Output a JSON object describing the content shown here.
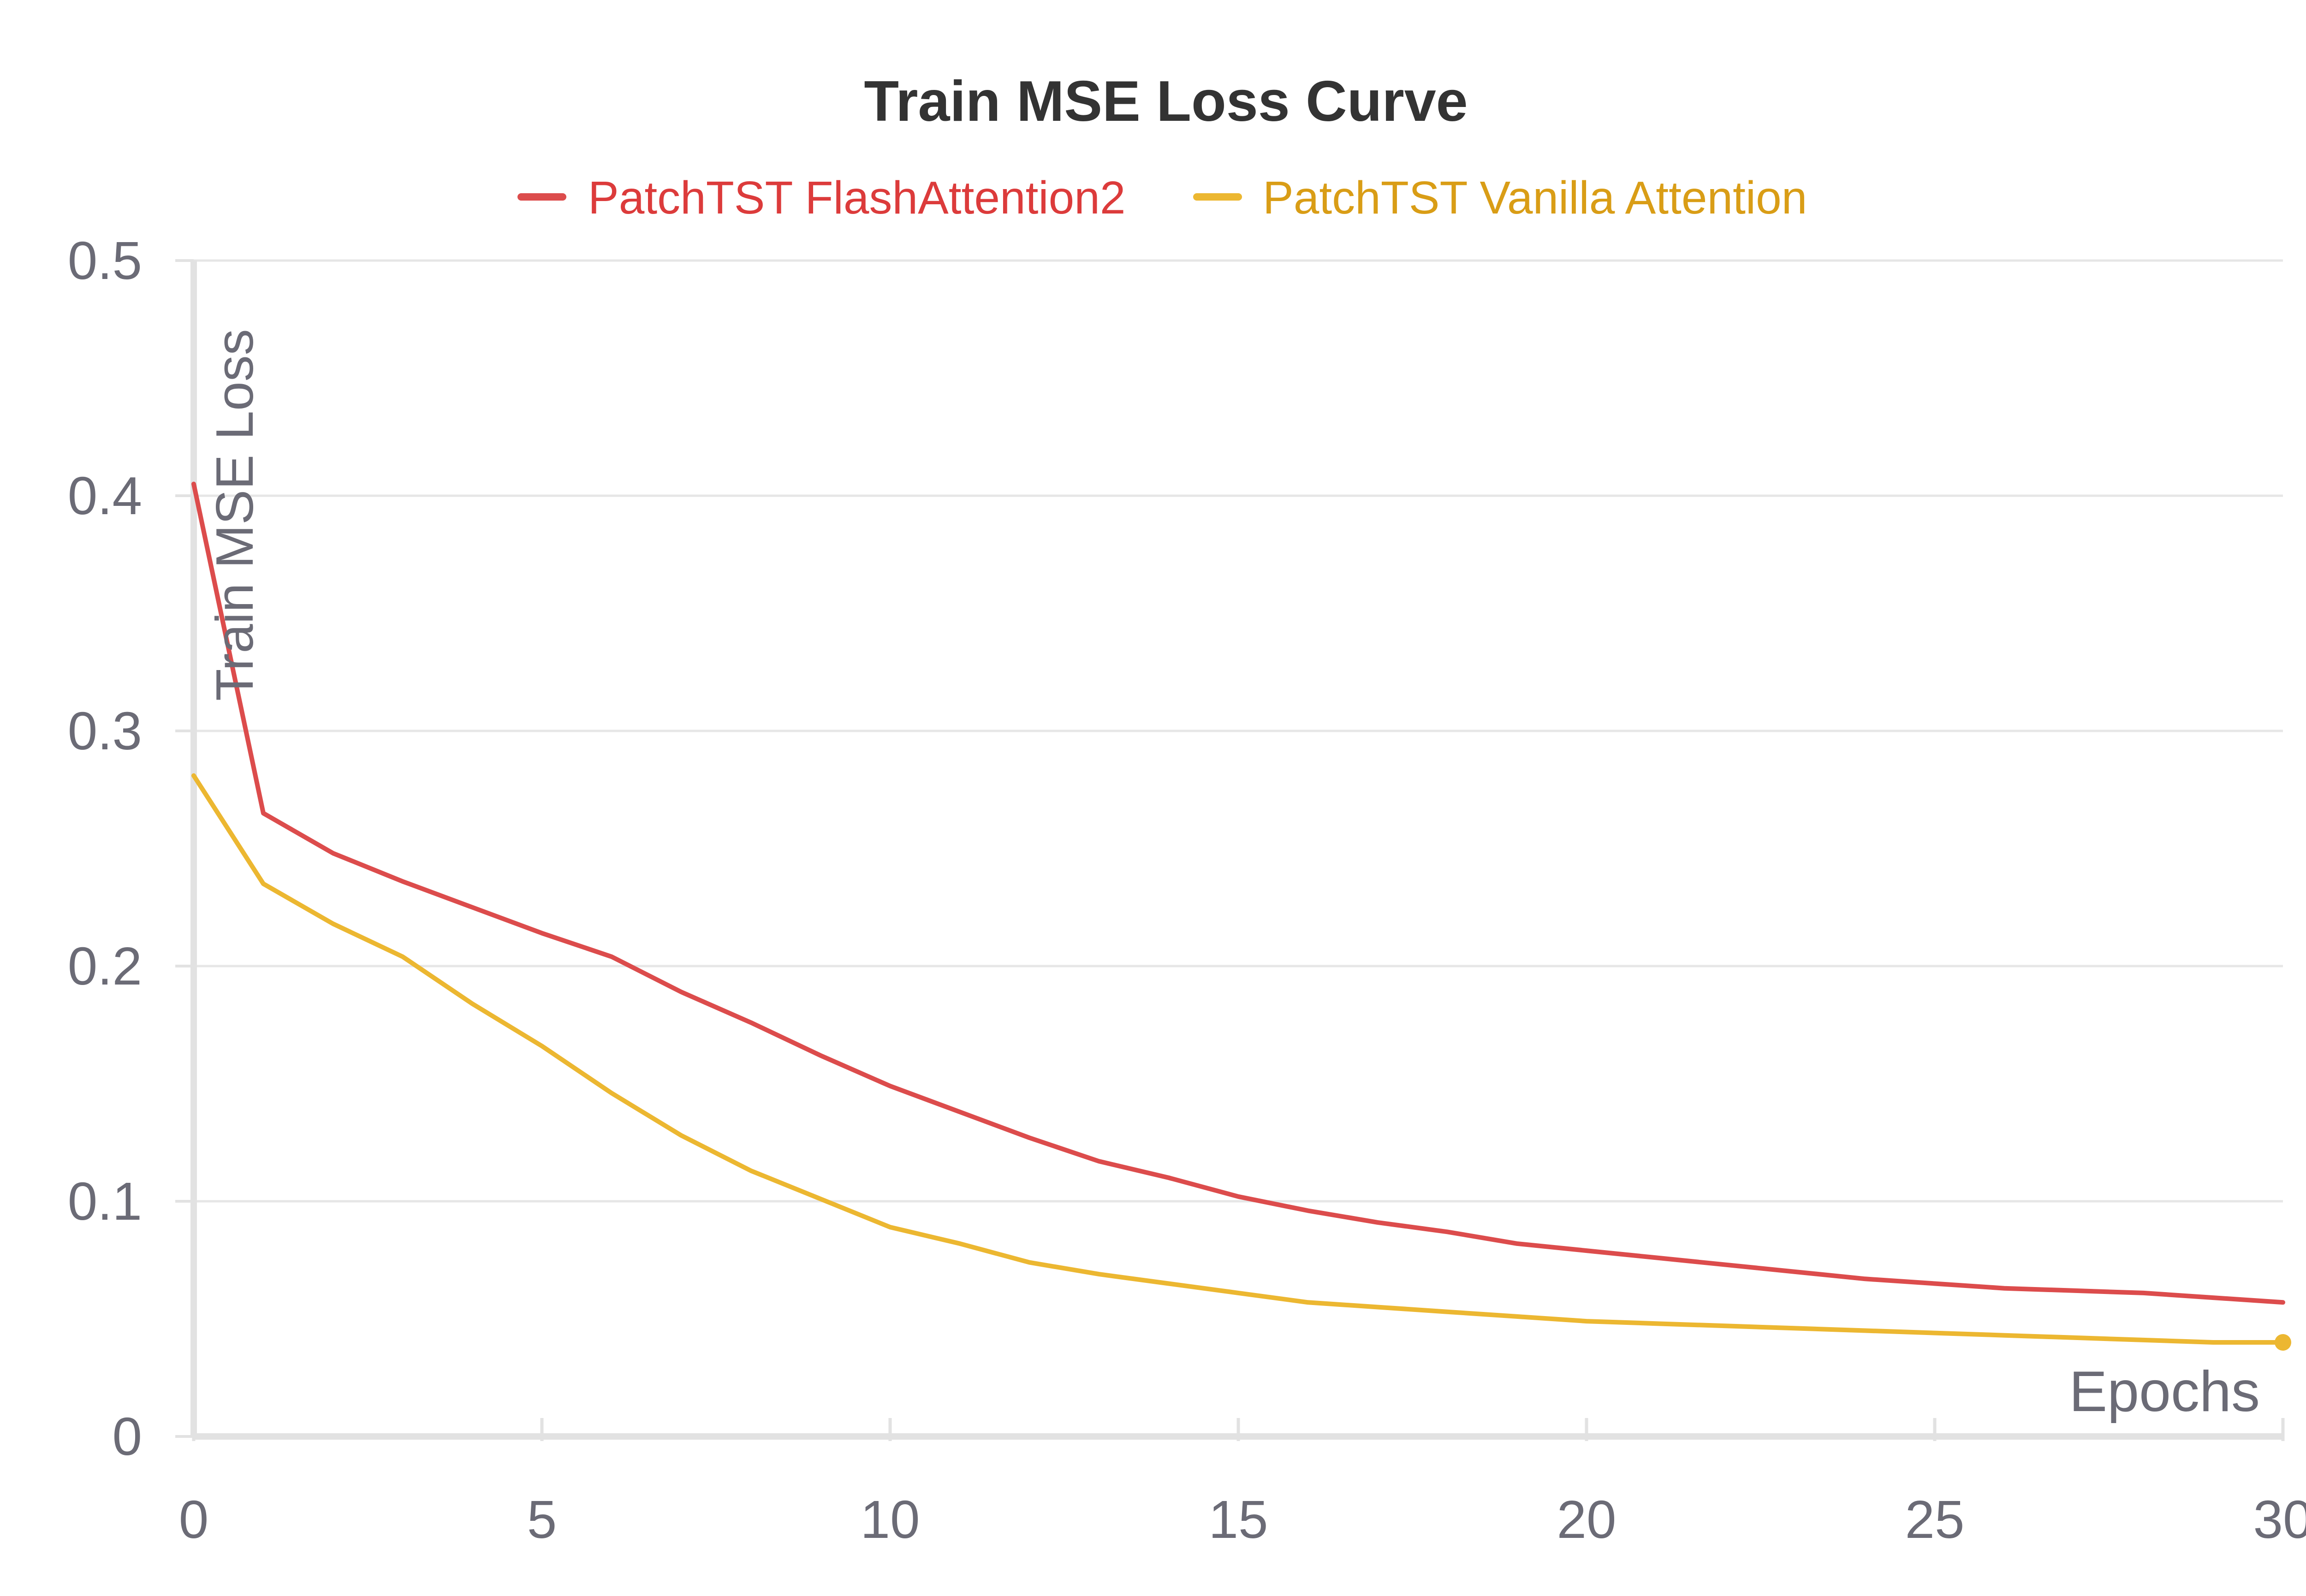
{
  "chart_data": {
    "type": "line",
    "title": "Train MSE Loss Curve",
    "xlabel": "Epochs",
    "ylabel": "Train MSE Loss",
    "xlim": [
      0,
      30
    ],
    "ylim": [
      0,
      0.5
    ],
    "x_ticks": [
      "0",
      "5",
      "10",
      "15",
      "20",
      "25",
      "30"
    ],
    "y_ticks": [
      "0",
      "0.1",
      "0.2",
      "0.3",
      "0.4",
      "0.5"
    ],
    "grid": true,
    "legend_position": "top-center",
    "x": [
      0,
      1,
      2,
      3,
      4,
      5,
      6,
      7,
      8,
      9,
      10,
      11,
      12,
      13,
      14,
      15,
      16,
      17,
      18,
      19,
      20,
      21,
      22,
      23,
      24,
      25,
      26,
      27,
      28,
      29,
      30
    ],
    "series": [
      {
        "name": "PatchTST FlashAttention2",
        "color": "#dc4c4c",
        "values": [
          0.405,
          0.265,
          0.248,
          0.236,
          0.225,
          0.214,
          0.204,
          0.189,
          0.176,
          0.162,
          0.149,
          0.138,
          0.127,
          0.117,
          0.11,
          0.102,
          0.096,
          0.091,
          0.087,
          0.082,
          0.079,
          0.076,
          0.073,
          0.07,
          0.067,
          0.065,
          0.063,
          0.062,
          0.061,
          0.059,
          0.057
        ]
      },
      {
        "name": "PatchTST Vanilla Attention",
        "color": "#ecb731",
        "values": [
          0.281,
          0.235,
          0.218,
          0.204,
          0.184,
          0.166,
          0.146,
          0.128,
          0.113,
          0.101,
          0.089,
          0.082,
          0.074,
          0.069,
          0.065,
          0.061,
          0.057,
          0.055,
          0.053,
          0.051,
          0.049,
          0.048,
          0.047,
          0.046,
          0.045,
          0.044,
          0.043,
          0.042,
          0.041,
          0.04,
          0.04
        ]
      }
    ],
    "colors": {
      "title": "#333333",
      "legend_text_1": "#dc3b3b",
      "legend_text_2": "#d99d16",
      "tick_text": "#6b6b76",
      "axis_label": "#6b6b76",
      "grid": "#e6e6e6",
      "axis": "#e2e2e2"
    }
  }
}
